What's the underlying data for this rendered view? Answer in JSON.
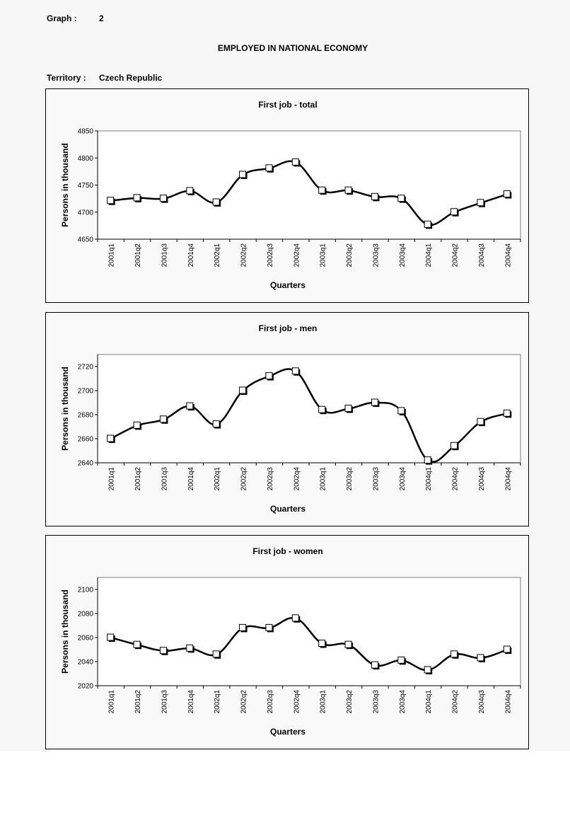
{
  "header": {
    "graph_label": "Graph :",
    "graph_number": "2",
    "main_title": "EMPLOYED IN NATIONAL ECONOMY",
    "territory_label": "Territory :",
    "territory_value": "Czech Republic"
  },
  "chart_data": [
    {
      "type": "line",
      "title": "First job - total",
      "xlabel": "Quarters",
      "ylabel": "Persons in thousand",
      "categories": [
        "2001q1",
        "2001q2",
        "2001q3",
        "2001q4",
        "2002q1",
        "2002q2",
        "2002q3",
        "2002q4",
        "2003q1",
        "2003q2",
        "2003q3",
        "2003q4",
        "2004q1",
        "2004q2",
        "2004q3",
        "2004q4"
      ],
      "values": [
        4721,
        4726,
        4725,
        4739,
        4718,
        4769,
        4781,
        4792,
        4740,
        4740,
        4728,
        4725,
        4677,
        4700,
        4717,
        4733
      ],
      "ylim": [
        4650,
        4850
      ],
      "yticks": [
        4650,
        4700,
        4750,
        4800,
        4850
      ],
      "grid": false,
      "legend": "none"
    },
    {
      "type": "line",
      "title": "First job - men",
      "xlabel": "Quarters",
      "ylabel": "Persons in thousand",
      "categories": [
        "2001q1",
        "2001q2",
        "2001q3",
        "2001q4",
        "2002q1",
        "2002q2",
        "2002q3",
        "2002q4",
        "2003q1",
        "2003q2",
        "2003q3",
        "2003q4",
        "2004q1",
        "2004q2",
        "2004q3",
        "2004q4"
      ],
      "values": [
        2660,
        2671,
        2676,
        2687,
        2672,
        2700,
        2712,
        2716,
        2684,
        2685,
        2690,
        2683,
        2642,
        2654,
        2674,
        2681
      ],
      "ylim": [
        2640,
        2730
      ],
      "yticks": [
        2640,
        2660,
        2680,
        2700,
        2720
      ],
      "grid": false,
      "legend": "none"
    },
    {
      "type": "line",
      "title": "First job - women",
      "xlabel": "Quarters",
      "ylabel": "Persons in thousand",
      "categories": [
        "2001q1",
        "2001q2",
        "2001q3",
        "2001q4",
        "2002q1",
        "2002q2",
        "2002q3",
        "2002q4",
        "2003q1",
        "2003q2",
        "2003q3",
        "2003q4",
        "2004q1",
        "2004q2",
        "2004q3",
        "2004q4"
      ],
      "values": [
        2060,
        2054,
        2049,
        2051,
        2046,
        2068,
        2068,
        2076,
        2055,
        2054,
        2037,
        2041,
        2033,
        2046,
        2043,
        2050
      ],
      "ylim": [
        2020,
        2110
      ],
      "yticks": [
        2020,
        2040,
        2060,
        2080,
        2100
      ],
      "grid": false,
      "legend": "none"
    }
  ]
}
